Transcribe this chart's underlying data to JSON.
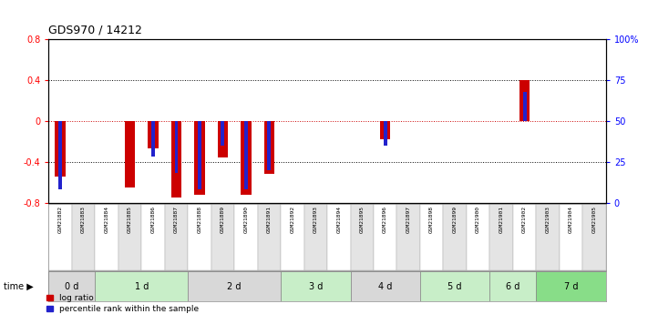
{
  "title": "GDS970 / 14212",
  "samples": [
    "GSM21882",
    "GSM21883",
    "GSM21884",
    "GSM21885",
    "GSM21886",
    "GSM21887",
    "GSM21888",
    "GSM21889",
    "GSM21890",
    "GSM21891",
    "GSM21892",
    "GSM21893",
    "GSM21894",
    "GSM21895",
    "GSM21896",
    "GSM21897",
    "GSM21898",
    "GSM21899",
    "GSM21900",
    "GSM21901",
    "GSM21902",
    "GSM21903",
    "GSM21904",
    "GSM21905"
  ],
  "log_ratio": [
    -0.55,
    0.0,
    0.0,
    -0.65,
    -0.27,
    -0.75,
    -0.72,
    -0.36,
    -0.72,
    -0.52,
    0.0,
    0.0,
    0.0,
    0.0,
    -0.18,
    0.0,
    0.0,
    0.0,
    0.0,
    0.0,
    0.4,
    0.0,
    0.0,
    0.0
  ],
  "percentile_rank": [
    8,
    50,
    50,
    50,
    28,
    18,
    8,
    35,
    8,
    20,
    50,
    50,
    50,
    50,
    35,
    50,
    50,
    50,
    50,
    50,
    68,
    50,
    50,
    50
  ],
  "time_groups": [
    {
      "label": "0 d",
      "start": 0,
      "end": 2,
      "color": "#d8d8d8"
    },
    {
      "label": "1 d",
      "start": 2,
      "end": 6,
      "color": "#c8eec8"
    },
    {
      "label": "2 d",
      "start": 6,
      "end": 10,
      "color": "#d8d8d8"
    },
    {
      "label": "3 d",
      "start": 10,
      "end": 13,
      "color": "#c8eec8"
    },
    {
      "label": "4 d",
      "start": 13,
      "end": 16,
      "color": "#d8d8d8"
    },
    {
      "label": "5 d",
      "start": 16,
      "end": 19,
      "color": "#c8eec8"
    },
    {
      "label": "6 d",
      "start": 19,
      "end": 21,
      "color": "#c8eec8"
    },
    {
      "label": "7 d",
      "start": 21,
      "end": 24,
      "color": "#88dd88"
    }
  ],
  "ylim": [
    -0.8,
    0.8
  ],
  "yticks_left": [
    -0.8,
    -0.4,
    0.0,
    0.4,
    0.8
  ],
  "yticks_right": [
    0,
    25,
    50,
    75,
    100
  ],
  "ytick_labels_right": [
    "0",
    "25",
    "50",
    "75",
    "100%"
  ],
  "bar_color_red": "#cc0000",
  "bar_color_blue": "#2222cc",
  "zero_line_color": "#cc0000",
  "grid_color": "#000000",
  "background_color": "#ffffff",
  "legend_red": "log ratio",
  "legend_blue": "percentile rank within the sample"
}
